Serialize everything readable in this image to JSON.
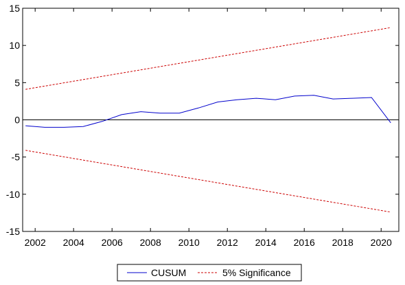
{
  "chart_data": {
    "type": "line",
    "xlim": [
      2001.35,
      2020.92
    ],
    "ylim": [
      -15,
      15
    ],
    "x_ticks": [
      2002,
      2004,
      2006,
      2008,
      2010,
      2012,
      2014,
      2016,
      2018,
      2020
    ],
    "y_ticks": [
      -15,
      -10,
      -5,
      0,
      5,
      10,
      15
    ],
    "zero_line": 0,
    "grid": false,
    "legend_position": "bottom-center",
    "series": [
      {
        "name": "CUSUM",
        "color": "#0000cc",
        "style": "solid",
        "x": [
          2001.5,
          2002.5,
          2003.5,
          2004.5,
          2005.5,
          2006.5,
          2007.5,
          2008.5,
          2009.5,
          2010.5,
          2011.5,
          2012.5,
          2013.5,
          2014.5,
          2015.5,
          2016.5,
          2017.5,
          2018.5,
          2019.5,
          2020.5
        ],
        "values": [
          -0.8,
          -1.0,
          -1.0,
          -0.9,
          -0.2,
          0.7,
          1.1,
          0.9,
          0.9,
          1.6,
          2.4,
          2.7,
          2.9,
          2.7,
          3.2,
          3.3,
          2.8,
          2.9,
          3.0,
          -0.4
        ]
      },
      {
        "name": "5% Significance",
        "color": "#cc0000",
        "style": "dashed",
        "x": [
          2001.5,
          2020.5
        ],
        "values": [
          4.1,
          12.4
        ]
      },
      {
        "name": "",
        "color": "#cc0000",
        "style": "dashed",
        "x": [
          2001.5,
          2020.5
        ],
        "values": [
          -4.1,
          -12.4
        ]
      }
    ]
  }
}
